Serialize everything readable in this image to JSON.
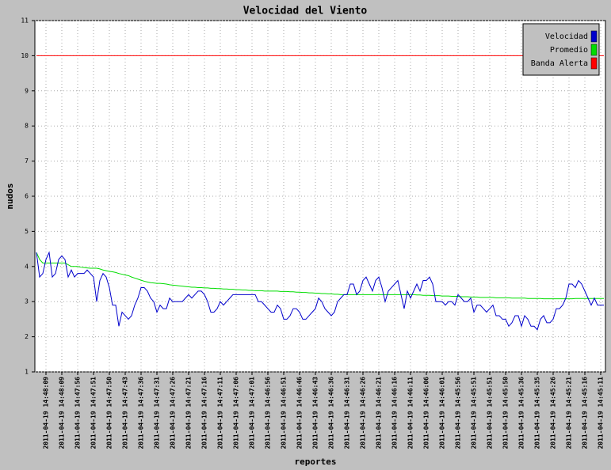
{
  "chart_data": {
    "type": "line",
    "title": "Velocidad del Viento",
    "xlabel": "reportes",
    "ylabel": "nudos",
    "ylim": [
      1,
      11
    ],
    "yticks": [
      1,
      2,
      3,
      4,
      5,
      6,
      7,
      8,
      9,
      10,
      11
    ],
    "grid": true,
    "legend": "top-right",
    "categories": [
      null,
      null,
      null,
      "2011-04-19 14:48:09",
      null,
      null,
      null,
      null,
      "2011-04-19 14:48:09",
      null,
      null,
      null,
      null,
      "2011-04-19 14:47:56",
      null,
      null,
      null,
      null,
      "2011-04-19 14:47:51",
      null,
      null,
      null,
      null,
      "2011-04-19 14:47:50",
      null,
      null,
      null,
      null,
      "2011-04-19 14:47:43",
      null,
      null,
      null,
      null,
      "2011-04-19 14:47:36",
      null,
      null,
      null,
      null,
      "2011-04-19 14:47:31",
      null,
      null,
      null,
      null,
      "2011-04-19 14:47:26",
      null,
      null,
      null,
      null,
      "2011-04-19 14:47:21",
      null,
      null,
      null,
      null,
      "2011-04-19 14:47:16",
      null,
      null,
      null,
      null,
      "2011-04-19 14:47:11",
      null,
      null,
      null,
      null,
      "2011-04-19 14:47:06",
      null,
      null,
      null,
      null,
      "2011-04-19 14:47:01",
      null,
      null,
      null,
      null,
      "2011-04-19 14:46:56",
      null,
      null,
      null,
      null,
      "2011-04-19 14:46:51",
      null,
      null,
      null,
      null,
      "2011-04-19 14:46:46",
      null,
      null,
      null,
      null,
      "2011-04-19 14:46:43",
      null,
      null,
      null,
      null,
      "2011-04-19 14:46:36",
      null,
      null,
      null,
      null,
      "2011-04-19 14:46:31",
      null,
      null,
      null,
      null,
      "2011-04-19 14:46:26",
      null,
      null,
      null,
      null,
      "2011-04-19 14:46:21",
      null,
      null,
      null,
      null,
      "2011-04-19 14:46:16",
      null,
      null,
      null,
      null,
      "2011-04-19 14:46:11",
      null,
      null,
      null,
      null,
      "2011-04-19 14:46:06",
      null,
      null,
      null,
      null,
      "2011-04-19 14:46:01",
      null,
      null,
      null,
      null,
      "2011-04-19 14:45:56",
      null,
      null,
      null,
      null,
      "2011-04-19 14:45:51",
      null,
      null,
      null,
      null,
      "2011-04-19 14:45:51",
      null,
      null,
      null,
      null,
      "2011-04-19 14:45:50",
      null,
      null,
      null,
      null,
      "2011-04-19 14:45:36",
      null,
      null,
      null,
      null,
      "2011-04-19 14:45:35",
      null,
      null,
      null,
      null,
      "2011-04-19 14:45:26",
      null,
      null,
      null,
      null,
      "2011-04-19 14:45:21",
      null,
      null,
      null,
      null,
      "2011-04-19 14:45:16",
      null,
      null,
      null,
      null,
      "2011-04-19 14:45:11",
      null
    ],
    "series": [
      {
        "name": "Velocidad",
        "color": "#0000cc",
        "values": [
          4.4,
          3.7,
          3.8,
          4.2,
          4.4,
          3.7,
          3.8,
          4.2,
          4.3,
          4.2,
          3.7,
          3.9,
          3.7,
          3.8,
          3.8,
          3.8,
          3.9,
          3.8,
          3.7,
          3.0,
          3.6,
          3.8,
          3.7,
          3.4,
          2.9,
          2.9,
          2.3,
          2.7,
          2.6,
          2.5,
          2.6,
          2.9,
          3.1,
          3.4,
          3.4,
          3.3,
          3.1,
          3.0,
          2.7,
          2.9,
          2.8,
          2.8,
          3.1,
          3.0,
          3.0,
          3.0,
          3.0,
          3.1,
          3.2,
          3.1,
          3.2,
          3.3,
          3.3,
          3.2,
          3.0,
          2.7,
          2.7,
          2.8,
          3.0,
          2.9,
          3.0,
          3.1,
          3.2,
          3.2,
          3.2,
          3.2,
          3.2,
          3.2,
          3.2,
          3.2,
          3.0,
          3.0,
          2.9,
          2.8,
          2.7,
          2.7,
          2.9,
          2.8,
          2.5,
          2.5,
          2.6,
          2.8,
          2.8,
          2.7,
          2.5,
          2.5,
          2.6,
          2.7,
          2.8,
          3.1,
          3.0,
          2.8,
          2.7,
          2.6,
          2.7,
          3.0,
          3.1,
          3.2,
          3.2,
          3.5,
          3.5,
          3.2,
          3.3,
          3.6,
          3.7,
          3.5,
          3.3,
          3.6,
          3.7,
          3.4,
          3.0,
          3.3,
          3.4,
          3.5,
          3.6,
          3.2,
          2.8,
          3.3,
          3.1,
          3.3,
          3.5,
          3.3,
          3.6,
          3.6,
          3.7,
          3.5,
          3.0,
          3.0,
          3.0,
          2.9,
          3.0,
          3.0,
          2.9,
          3.2,
          3.1,
          3.0,
          3.0,
          3.1,
          2.7,
          2.9,
          2.9,
          2.8,
          2.7,
          2.8,
          2.9,
          2.6,
          2.6,
          2.5,
          2.5,
          2.3,
          2.4,
          2.6,
          2.6,
          2.3,
          2.6,
          2.5,
          2.3,
          2.3,
          2.2,
          2.5,
          2.6,
          2.4,
          2.4,
          2.5,
          2.8,
          2.8,
          2.9,
          3.1,
          3.5,
          3.5,
          3.4,
          3.6,
          3.5,
          3.3,
          3.1,
          2.9,
          3.1,
          2.9,
          2.9,
          2.9
        ]
      },
      {
        "name": "Promedio",
        "color": "#00dd00",
        "values": [
          4.4,
          4.2,
          4.1,
          4.1,
          4.1,
          4.1,
          4.1,
          4.1,
          4.1,
          4.1,
          4.05,
          4.0,
          4.0,
          4.0,
          3.98,
          3.97,
          3.96,
          3.95,
          3.95,
          3.95,
          3.93,
          3.9,
          3.88,
          3.86,
          3.85,
          3.83,
          3.8,
          3.78,
          3.76,
          3.74,
          3.7,
          3.67,
          3.64,
          3.61,
          3.58,
          3.56,
          3.54,
          3.53,
          3.52,
          3.52,
          3.51,
          3.5,
          3.48,
          3.47,
          3.46,
          3.45,
          3.44,
          3.43,
          3.42,
          3.41,
          3.41,
          3.4,
          3.4,
          3.39,
          3.39,
          3.38,
          3.38,
          3.37,
          3.37,
          3.36,
          3.36,
          3.35,
          3.35,
          3.34,
          3.34,
          3.33,
          3.33,
          3.32,
          3.32,
          3.31,
          3.31,
          3.31,
          3.3,
          3.3,
          3.3,
          3.3,
          3.3,
          3.29,
          3.29,
          3.29,
          3.28,
          3.28,
          3.27,
          3.27,
          3.26,
          3.26,
          3.25,
          3.25,
          3.24,
          3.24,
          3.23,
          3.23,
          3.22,
          3.22,
          3.21,
          3.21,
          3.2,
          3.2,
          3.2,
          3.2,
          3.2,
          3.2,
          3.2,
          3.2,
          3.2,
          3.2,
          3.2,
          3.2,
          3.2,
          3.2,
          3.2,
          3.2,
          3.2,
          3.2,
          3.2,
          3.2,
          3.2,
          3.2,
          3.2,
          3.2,
          3.19,
          3.19,
          3.18,
          3.18,
          3.18,
          3.17,
          3.17,
          3.17,
          3.16,
          3.16,
          3.16,
          3.15,
          3.15,
          3.15,
          3.14,
          3.14,
          3.14,
          3.13,
          3.13,
          3.13,
          3.12,
          3.12,
          3.12,
          3.12,
          3.12,
          3.11,
          3.11,
          3.11,
          3.11,
          3.11,
          3.1,
          3.1,
          3.1,
          3.1,
          3.1,
          3.09,
          3.09,
          3.09,
          3.09,
          3.09,
          3.08,
          3.08,
          3.08,
          3.08,
          3.08,
          3.08,
          3.08,
          3.08,
          3.08,
          3.08,
          3.09,
          3.09,
          3.09,
          3.09,
          3.09,
          3.09,
          3.09,
          3.09,
          3.09,
          3.09
        ]
      },
      {
        "name": "Banda Alerta",
        "color": "#ff0000",
        "values": [
          10,
          10,
          10,
          10,
          10,
          10,
          10,
          10,
          10,
          10,
          10,
          10,
          10,
          10,
          10,
          10,
          10,
          10,
          10,
          10,
          10,
          10,
          10,
          10,
          10,
          10,
          10,
          10,
          10,
          10,
          10,
          10,
          10,
          10,
          10,
          10,
          10,
          10,
          10,
          10,
          10,
          10,
          10,
          10,
          10,
          10,
          10,
          10,
          10,
          10,
          10,
          10,
          10,
          10,
          10,
          10,
          10,
          10,
          10,
          10,
          10,
          10,
          10,
          10,
          10,
          10,
          10,
          10,
          10,
          10,
          10,
          10,
          10,
          10,
          10,
          10,
          10,
          10,
          10,
          10,
          10,
          10,
          10,
          10,
          10,
          10,
          10,
          10,
          10,
          10,
          10,
          10,
          10,
          10,
          10,
          10,
          10,
          10,
          10,
          10,
          10,
          10,
          10,
          10,
          10,
          10,
          10,
          10,
          10,
          10,
          10,
          10,
          10,
          10,
          10,
          10,
          10,
          10,
          10,
          10,
          10,
          10,
          10,
          10,
          10,
          10,
          10,
          10,
          10,
          10,
          10,
          10,
          10,
          10,
          10,
          10,
          10,
          10,
          10,
          10,
          10,
          10,
          10,
          10,
          10,
          10,
          10,
          10,
          10,
          10,
          10,
          10,
          10,
          10,
          10,
          10,
          10,
          10,
          10,
          10,
          10,
          10,
          10,
          10,
          10,
          10,
          10,
          10,
          10,
          10,
          10,
          10,
          10,
          10,
          10,
          10,
          10,
          10,
          10,
          10
        ]
      }
    ]
  }
}
